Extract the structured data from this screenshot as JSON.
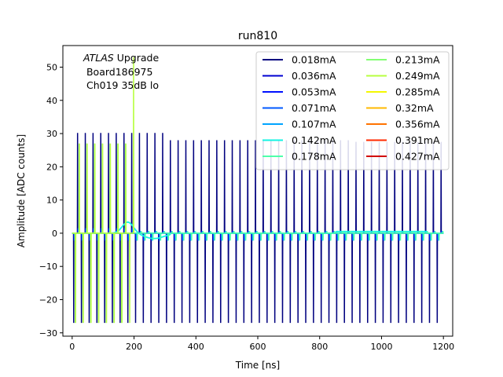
{
  "chart_data": {
    "type": "line",
    "title": "run810",
    "xlabel": "Time [ns]",
    "ylabel": "Amplitude [ADC counts]",
    "xlim": [
      -30,
      1230
    ],
    "ylim": [
      -31,
      56.5
    ],
    "xticks": [
      0,
      200,
      400,
      600,
      800,
      1000,
      1200
    ],
    "yticks": [
      -30,
      -20,
      -10,
      0,
      10,
      20,
      30,
      40,
      50
    ],
    "grid": false,
    "legend": {
      "placement": "top-right",
      "columns": 2
    },
    "annotation": {
      "italic": "ATLAS",
      "rest": " Upgrade",
      "line2": " Board186975",
      "line3": " Ch019 35dB lo"
    },
    "pulse": {
      "period_ns": 25,
      "positive_peak": 30.2,
      "negative_peak": -27
    },
    "series": [
      {
        "name": "0.018mA",
        "color": "#00007f",
        "x_end": 1200
      },
      {
        "name": "0.036mA",
        "color": "#0000d1",
        "x_end": 1200
      },
      {
        "name": "0.053mA",
        "color": "#0010ff",
        "x_end": 1200
      },
      {
        "name": "0.071mA",
        "color": "#0058ff",
        "x_end": 1200
      },
      {
        "name": "0.107mA",
        "color": "#00a4ff",
        "x_end": 1200
      },
      {
        "name": "0.142mA",
        "color": "#13f3e3",
        "x_end": 1200
      },
      {
        "name": "0.178mA",
        "color": "#4dffaa",
        "x_end": 1200
      },
      {
        "name": "0.213mA",
        "color": "#83ff73",
        "x_end": 180
      },
      {
        "name": "0.249mA",
        "color": "#b7ff40",
        "x_end": 200
      },
      {
        "name": "0.285mA",
        "color": "#f4f802",
        "x_end": 0
      },
      {
        "name": "0.32mA",
        "color": "#ffb900",
        "x_end": 0
      },
      {
        "name": "0.356mA",
        "color": "#ff7300",
        "x_end": 0
      },
      {
        "name": "0.391mA",
        "color": "#ff2900",
        "x_end": 0
      },
      {
        "name": "0.427mA",
        "color": "#d10000",
        "x_end": 0
      }
    ]
  }
}
